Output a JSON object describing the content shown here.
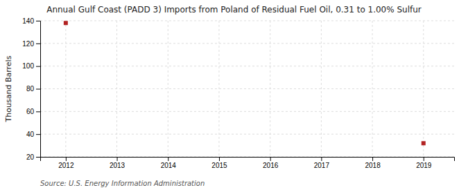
{
  "chart_data": {
    "type": "scatter",
    "title": "Annual Gulf Coast (PADD 3) Imports from Poland of Residual Fuel Oil, 0.31 to 1.00% Sulfur",
    "ylabel": "Thousand Barrels",
    "source": "Source: U.S. Energy Information Administration",
    "x": [
      2012,
      2019
    ],
    "values": [
      138,
      32
    ],
    "color": "#B22222",
    "marker": "square",
    "xlim": [
      2011.5,
      2019.6
    ],
    "xticks": [
      2012,
      2013,
      2014,
      2015,
      2016,
      2017,
      2018,
      2019
    ],
    "ylim": [
      20,
      140
    ],
    "yticks": [
      20,
      40,
      60,
      80,
      100,
      120,
      140
    ],
    "grid": true
  }
}
